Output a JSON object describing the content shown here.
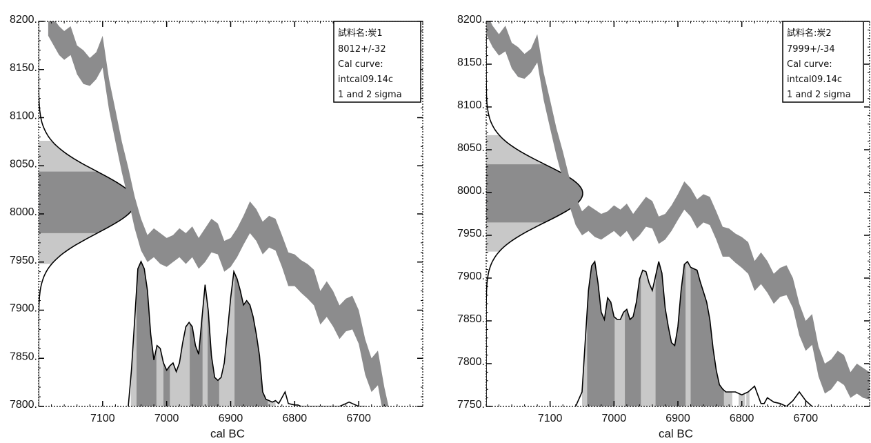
{
  "colors": {
    "band": "#8c8c8d",
    "dark_fill": "#8c8c8d",
    "light_fill": "#c8c8c8",
    "line": "#000000"
  },
  "chart_data": [
    {
      "type": "area",
      "xlabel": "cal BC",
      "ylabel": "",
      "xlim": [
        7200,
        6600
      ],
      "ylim": [
        7800,
        8200
      ],
      "x_ticks": [
        7100,
        7000,
        6900,
        6800,
        6700
      ],
      "x_tick_labels": [
        "7100",
        "7000",
        "6900",
        "6800",
        "6700"
      ],
      "y_ticks": [
        7800,
        7850,
        7900,
        7950,
        8000,
        8050,
        8100,
        8150,
        8200
      ],
      "y_tick_labels": [
        "7800.",
        "7850.",
        "7900.",
        "7950.",
        "8000.",
        "8050.",
        "8100.",
        "8150.",
        "8200."
      ],
      "legend": [
        "試料名:炭1",
        "8012+/-32",
        "Cal curve:",
        "intcal09.14c",
        "1 and 2 sigma"
      ],
      "legend_position": "top-right",
      "radiocarbon_age": {
        "mean": 8012,
        "error": 32,
        "sigma1": [
          7980,
          8044
        ],
        "sigma2": [
          7948,
          8076
        ]
      },
      "calibration_curve": {
        "x": [
          7185,
          7168,
          7160,
          7150,
          7140,
          7130,
          7120,
          7110,
          7100,
          7090,
          7080,
          7070,
          7060,
          7050,
          7040,
          7030,
          7020,
          7010,
          7000,
          6990,
          6980,
          6970,
          6960,
          6950,
          6940,
          6930,
          6920,
          6910,
          6900,
          6890,
          6880,
          6870,
          6860,
          6850,
          6840,
          6830,
          6820,
          6810,
          6800,
          6790,
          6780,
          6770,
          6760,
          6750,
          6740,
          6730,
          6720,
          6710,
          6700,
          6690,
          6680,
          6670,
          6660,
          6650
        ],
        "upper": [
          8210,
          8195,
          8190,
          8195,
          8175,
          8170,
          8162,
          8168,
          8185,
          8140,
          8108,
          8075,
          8048,
          8018,
          7995,
          7978,
          7985,
          7980,
          7975,
          7978,
          7985,
          7980,
          7987,
          7975,
          7985,
          7995,
          7990,
          7972,
          7975,
          7985,
          7998,
          8013,
          8005,
          7992,
          7998,
          7995,
          7978,
          7960,
          7958,
          7952,
          7948,
          7942,
          7920,
          7930,
          7920,
          7905,
          7912,
          7915,
          7900,
          7870,
          7850,
          7858,
          7820,
          7790
        ],
        "lower": [
          8185,
          8165,
          8160,
          8165,
          8145,
          8135,
          8133,
          8140,
          8152,
          8108,
          8075,
          8043,
          8015,
          7985,
          7962,
          7950,
          7955,
          7948,
          7945,
          7950,
          7955,
          7948,
          7955,
          7943,
          7950,
          7960,
          7958,
          7940,
          7945,
          7955,
          7968,
          7980,
          7972,
          7958,
          7965,
          7962,
          7945,
          7925,
          7925,
          7918,
          7912,
          7905,
          7885,
          7893,
          7883,
          7870,
          7878,
          7880,
          7865,
          7833,
          7815,
          7822,
          7785,
          7790
        ]
      },
      "probability_curve": {
        "x": [
          7060,
          7055,
          7050,
          7045,
          7040,
          7035,
          7030,
          7025,
          7020,
          7015,
          7010,
          7005,
          7000,
          6995,
          6990,
          6985,
          6980,
          6975,
          6970,
          6965,
          6960,
          6955,
          6950,
          6945,
          6940,
          6935,
          6930,
          6925,
          6920,
          6915,
          6910,
          6905,
          6900,
          6895,
          6890,
          6885,
          6880,
          6875,
          6870,
          6865,
          6860,
          6855,
          6850,
          6845,
          6840,
          6835,
          6830,
          6825,
          6820,
          6815,
          6810,
          6800,
          6795,
          6790,
          6785,
          6780,
          6775,
          6770,
          6760,
          6750,
          6740,
          6730,
          6720,
          6715,
          6710,
          6705,
          6700,
          6690
        ],
        "y": [
          0.0,
          0.25,
          0.6,
          0.95,
          1.0,
          0.95,
          0.8,
          0.5,
          0.32,
          0.42,
          0.4,
          0.3,
          0.25,
          0.28,
          0.3,
          0.24,
          0.3,
          0.44,
          0.55,
          0.58,
          0.55,
          0.42,
          0.36,
          0.6,
          0.84,
          0.66,
          0.35,
          0.2,
          0.18,
          0.2,
          0.3,
          0.52,
          0.75,
          0.93,
          0.88,
          0.8,
          0.7,
          0.73,
          0.7,
          0.62,
          0.5,
          0.35,
          0.1,
          0.05,
          0.04,
          0.03,
          0.04,
          0.02,
          0.06,
          0.1,
          0.02,
          0.01,
          0.01,
          0.0,
          0.0,
          0.0,
          0.0,
          0.0,
          0.0,
          0.0,
          0.0,
          0.0,
          0.02,
          0.03,
          0.02,
          0.01,
          0.0,
          0.0
        ]
      },
      "sigma1_ranges": [
        [
          7047,
          7016
        ],
        [
          7005,
          6995
        ],
        [
          6964,
          6944
        ],
        [
          6936,
          6918
        ],
        [
          6894,
          6842
        ]
      ],
      "sigma2_ranges": [
        [
          7056,
          6830
        ]
      ]
    },
    {
      "type": "area",
      "xlabel": "cal BC",
      "ylabel": "",
      "xlim": [
        7200,
        6600
      ],
      "ylim": [
        7750,
        8200
      ],
      "x_ticks": [
        7100,
        7000,
        6900,
        6800,
        6700
      ],
      "x_tick_labels": [
        "7100",
        "7000",
        "6900",
        "6800",
        "6700"
      ],
      "y_ticks": [
        7750,
        7800,
        7850,
        7900,
        7950,
        8000,
        8050,
        8100,
        8150,
        8200
      ],
      "y_tick_labels": [
        "7750.",
        "7800.",
        "7850.",
        "7900.",
        "7950.",
        "8000.",
        "8050.",
        "8100.",
        "8150.",
        "8200."
      ],
      "legend": [
        "試料名:炭2",
        "7999+/-34",
        "Cal curve:",
        "intcal09.14c",
        "1 and 2 sigma"
      ],
      "legend_position": "top-right",
      "radiocarbon_age": {
        "mean": 7999,
        "error": 34,
        "sigma1": [
          7965,
          8033
        ],
        "sigma2": [
          7931,
          8067
        ]
      },
      "calibration_curve": {
        "x": [
          7200,
          7190,
          7180,
          7170,
          7160,
          7150,
          7140,
          7130,
          7120,
          7110,
          7100,
          7090,
          7080,
          7070,
          7060,
          7050,
          7040,
          7030,
          7020,
          7010,
          7000,
          6990,
          6980,
          6970,
          6960,
          6950,
          6940,
          6930,
          6920,
          6910,
          6900,
          6890,
          6880,
          6870,
          6860,
          6850,
          6840,
          6830,
          6820,
          6810,
          6800,
          6790,
          6780,
          6770,
          6760,
          6750,
          6740,
          6730,
          6720,
          6710,
          6700,
          6690,
          6680,
          6670,
          6660,
          6650,
          6640,
          6630,
          6620,
          6610,
          6600
        ],
        "upper": [
          8210,
          8195,
          8185,
          8195,
          8175,
          8170,
          8162,
          8168,
          8185,
          8140,
          8108,
          8075,
          8048,
          8018,
          7995,
          7978,
          7985,
          7980,
          7975,
          7978,
          7985,
          7980,
          7987,
          7975,
          7985,
          7995,
          7990,
          7972,
          7975,
          7985,
          7998,
          8013,
          8005,
          7992,
          7998,
          7995,
          7978,
          7960,
          7958,
          7952,
          7948,
          7942,
          7920,
          7930,
          7920,
          7905,
          7912,
          7915,
          7900,
          7870,
          7850,
          7858,
          7820,
          7800,
          7805,
          7815,
          7810,
          7790,
          7800,
          7795,
          7790
        ],
        "lower": [
          8185,
          8170,
          8160,
          8165,
          8145,
          8135,
          8133,
          8140,
          8152,
          8108,
          8075,
          8043,
          8015,
          7985,
          7962,
          7950,
          7955,
          7948,
          7945,
          7950,
          7955,
          7948,
          7955,
          7943,
          7950,
          7960,
          7958,
          7940,
          7945,
          7955,
          7968,
          7980,
          7972,
          7958,
          7965,
          7962,
          7945,
          7925,
          7925,
          7918,
          7912,
          7905,
          7885,
          7893,
          7883,
          7870,
          7878,
          7880,
          7865,
          7833,
          7815,
          7822,
          7785,
          7765,
          7770,
          7780,
          7775,
          7760,
          7765,
          7760,
          7758
        ]
      },
      "probability_curve": {
        "x": [
          7060,
          7050,
          7045,
          7040,
          7035,
          7030,
          7025,
          7020,
          7015,
          7010,
          7005,
          7000,
          6995,
          6990,
          6985,
          6980,
          6975,
          6970,
          6965,
          6960,
          6955,
          6950,
          6945,
          6940,
          6935,
          6930,
          6925,
          6920,
          6915,
          6910,
          6905,
          6900,
          6895,
          6890,
          6885,
          6880,
          6875,
          6870,
          6865,
          6860,
          6855,
          6850,
          6845,
          6840,
          6835,
          6830,
          6825,
          6820,
          6810,
          6800,
          6790,
          6780,
          6775,
          6770,
          6765,
          6760,
          6750,
          6740,
          6730,
          6720,
          6710,
          6700,
          6690
        ],
        "y": [
          0.0,
          0.1,
          0.45,
          0.8,
          0.97,
          1.0,
          0.85,
          0.65,
          0.6,
          0.75,
          0.72,
          0.62,
          0.6,
          0.6,
          0.65,
          0.67,
          0.6,
          0.62,
          0.72,
          0.88,
          0.94,
          0.93,
          0.85,
          0.8,
          0.9,
          1.0,
          0.92,
          0.68,
          0.55,
          0.44,
          0.42,
          0.55,
          0.8,
          0.98,
          1.0,
          0.96,
          0.95,
          0.94,
          0.86,
          0.79,
          0.72,
          0.6,
          0.4,
          0.25,
          0.15,
          0.12,
          0.1,
          0.1,
          0.1,
          0.08,
          0.1,
          0.14,
          0.08,
          0.02,
          0.02,
          0.06,
          0.03,
          0.02,
          0.0,
          0.04,
          0.1,
          0.04,
          0.0
        ]
      },
      "sigma1_ranges": [
        [
          7042,
          6999
        ],
        [
          6983,
          6958
        ],
        [
          6935,
          6888
        ],
        [
          6880,
          6828
        ]
      ],
      "sigma2_ranges": [
        [
          7050,
          6815
        ],
        [
          6805,
          6795
        ],
        [
          6793,
          6788
        ]
      ]
    }
  ]
}
